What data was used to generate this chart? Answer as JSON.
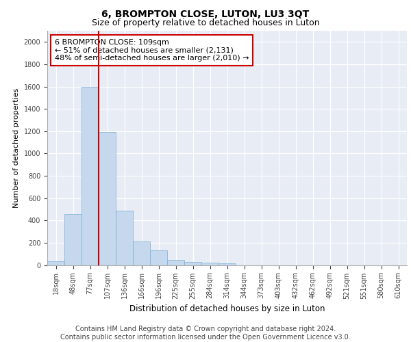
{
  "title1": "6, BROMPTON CLOSE, LUTON, LU3 3QT",
  "title2": "Size of property relative to detached houses in Luton",
  "xlabel": "Distribution of detached houses by size in Luton",
  "ylabel": "Number of detached properties",
  "categories": [
    "18sqm",
    "48sqm",
    "77sqm",
    "107sqm",
    "136sqm",
    "166sqm",
    "196sqm",
    "225sqm",
    "255sqm",
    "284sqm",
    "314sqm",
    "344sqm",
    "373sqm",
    "403sqm",
    "432sqm",
    "462sqm",
    "492sqm",
    "521sqm",
    "551sqm",
    "580sqm",
    "610sqm"
  ],
  "values": [
    35,
    455,
    1600,
    1195,
    490,
    210,
    130,
    45,
    30,
    20,
    15,
    0,
    0,
    0,
    0,
    0,
    0,
    0,
    0,
    0,
    0
  ],
  "bar_color": "#c5d8ee",
  "bar_edge_color": "#7aaed4",
  "red_line_index": 2.5,
  "annotation_text": "6 BROMPTON CLOSE: 109sqm\n← 51% of detached houses are smaller (2,131)\n48% of semi-detached houses are larger (2,010) →",
  "annotation_box_color": "white",
  "annotation_box_edge_color": "#cc0000",
  "red_line_color": "#cc0000",
  "ylim": [
    0,
    2100
  ],
  "yticks": [
    0,
    200,
    400,
    600,
    800,
    1000,
    1200,
    1400,
    1600,
    1800,
    2000
  ],
  "background_color": "#e8edf5",
  "grid_color": "white",
  "footer_text": "Contains HM Land Registry data © Crown copyright and database right 2024.\nContains public sector information licensed under the Open Government Licence v3.0.",
  "title1_fontsize": 10,
  "title2_fontsize": 9,
  "xlabel_fontsize": 8.5,
  "ylabel_fontsize": 8,
  "tick_fontsize": 7,
  "annotation_fontsize": 8,
  "footer_fontsize": 7
}
